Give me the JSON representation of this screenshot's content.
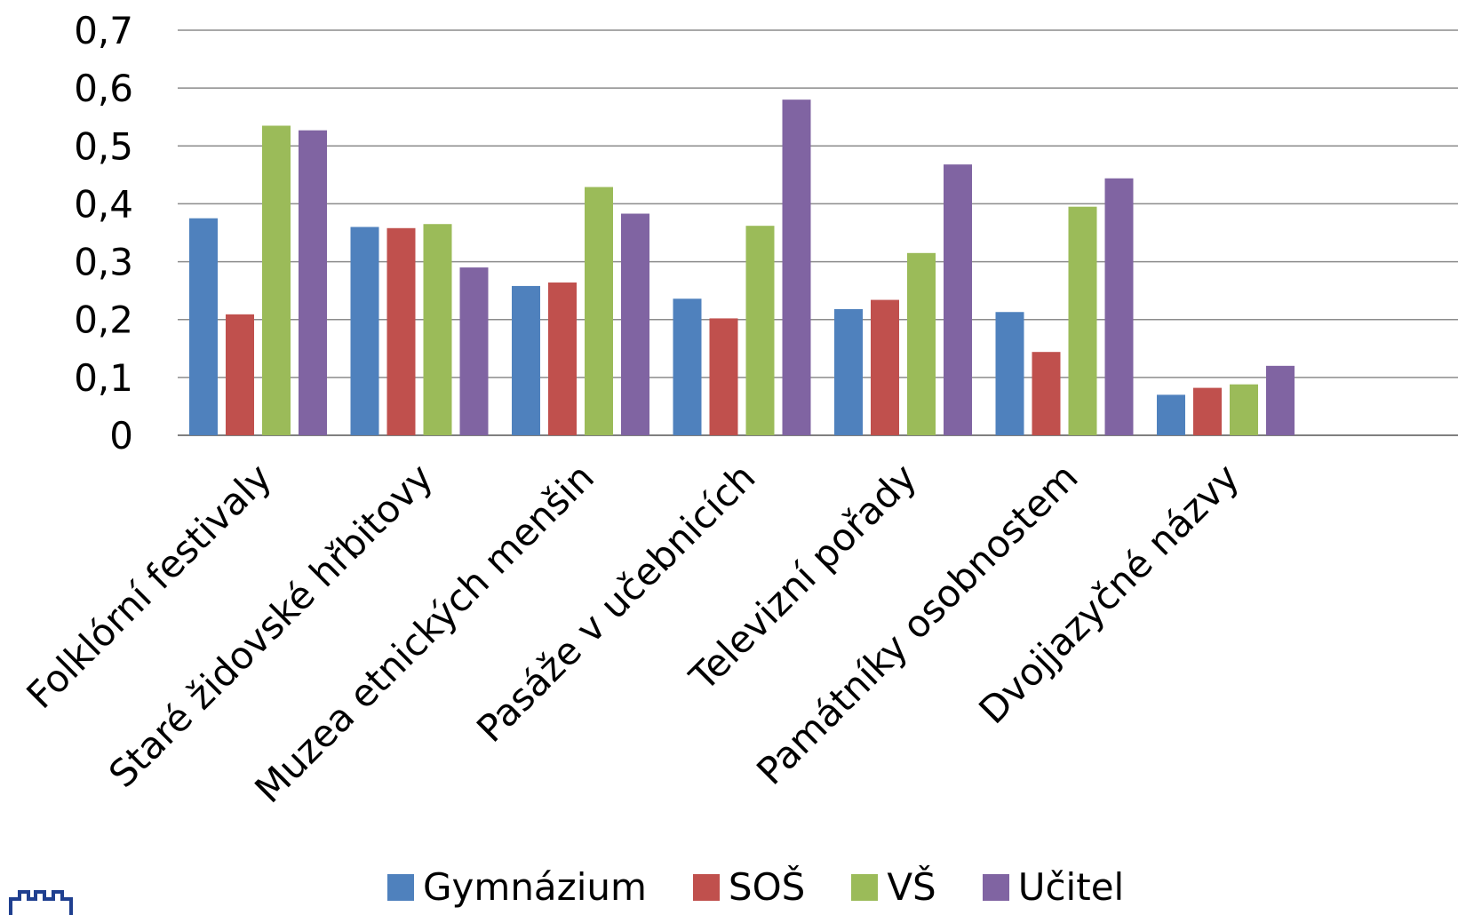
{
  "chart_data": {
    "type": "bar",
    "categories": [
      "Folklórní festivaly",
      "Staré židovské hřbitovy",
      "Muzea etnických menšin",
      "Pasáže v učebnicích",
      "Televizní pořady",
      "Památníky osobnostem",
      "Dvojjazyčné názvy"
    ],
    "series": [
      {
        "name": "Gymnázium",
        "color": "#4F81BD",
        "values": [
          0.375,
          0.36,
          0.258,
          0.236,
          0.218,
          0.213,
          0.07
        ]
      },
      {
        "name": "SOŠ",
        "color": "#C0504D",
        "values": [
          0.209,
          0.358,
          0.264,
          0.202,
          0.234,
          0.144,
          0.082
        ]
      },
      {
        "name": "VŠ",
        "color": "#9BBB59",
        "values": [
          0.535,
          0.365,
          0.429,
          0.362,
          0.315,
          0.395,
          0.088
        ]
      },
      {
        "name": "Učitel",
        "color": "#8064A2",
        "values": [
          0.527,
          0.29,
          0.383,
          0.58,
          0.468,
          0.444,
          0.12
        ]
      }
    ],
    "yticks": [
      "0",
      "0,1",
      "0,2",
      "0,3",
      "0,4",
      "0,5",
      "0,6",
      "0,7"
    ],
    "ylim": [
      0,
      0.7
    ],
    "grid": true,
    "legend": "bottom"
  }
}
